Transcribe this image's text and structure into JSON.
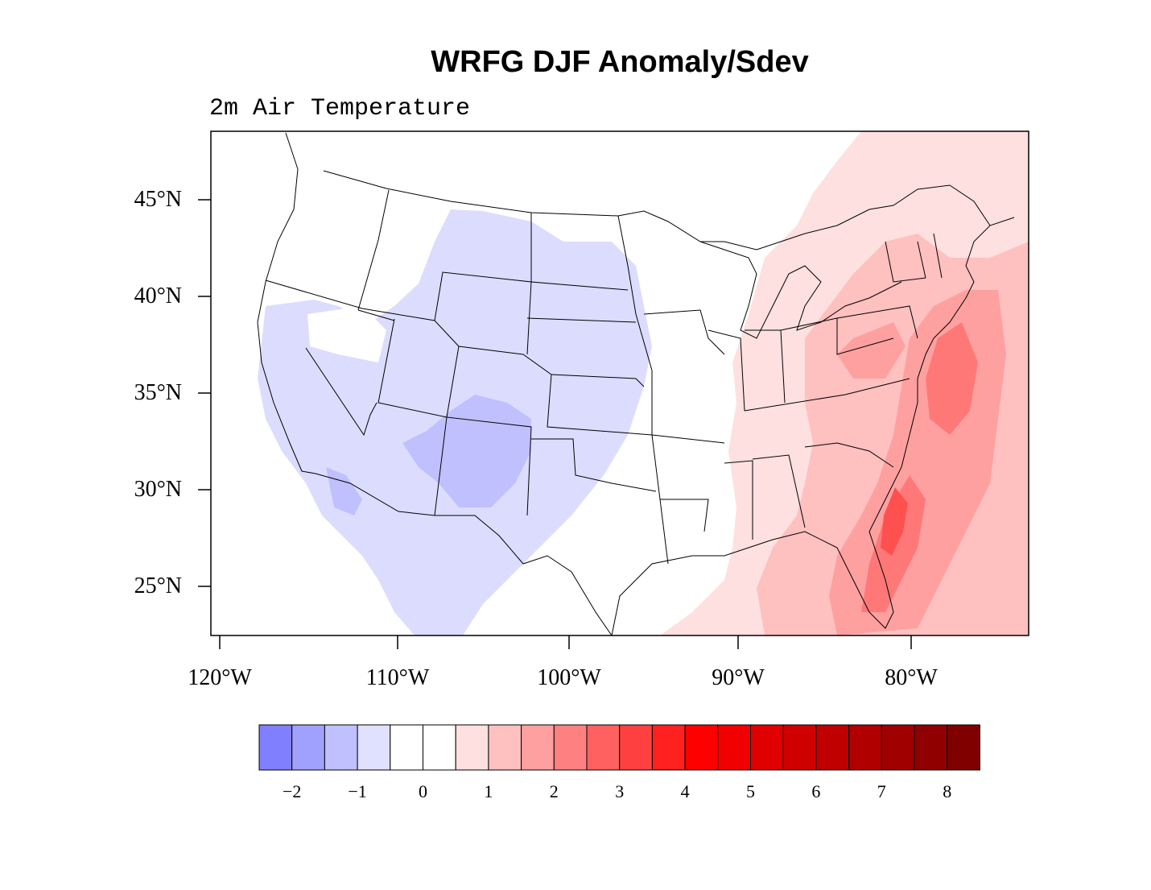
{
  "title": "WRFG DJF Anomaly/Sdev",
  "subtitle": "2m Air Temperature",
  "lat_ticks": [
    "45°N",
    "40°N",
    "35°N",
    "30°N",
    "25°N"
  ],
  "lon_ticks": [
    "120°W",
    "110°W",
    "100°W",
    "90°W",
    "80°W"
  ],
  "colorbar": {
    "colors": [
      "#8080ff",
      "#a0a0ff",
      "#c0c0ff",
      "#e0e0ff",
      "#ffffff",
      "#ffffff",
      "#ffe0e0",
      "#ffc0c0",
      "#ffa0a0",
      "#ff8080",
      "#ff6060",
      "#ff4040",
      "#ff2020",
      "#ff0000",
      "#f00000",
      "#e00000",
      "#d00000",
      "#c00000",
      "#b00000",
      "#a00000",
      "#900000",
      "#800000"
    ],
    "labels": [
      "-2",
      "-1",
      "0",
      "1",
      "2",
      "3",
      "4",
      "5",
      "6",
      "7",
      "8"
    ]
  },
  "colors": {
    "cold": "#dcdcff",
    "cold2": "#c0c0ff",
    "warm1": "#ffe0e0",
    "warm2": "#ffc0c0",
    "warm3": "#ffa0a0",
    "warm4": "#ff7878",
    "warm5": "#ff5050"
  }
}
